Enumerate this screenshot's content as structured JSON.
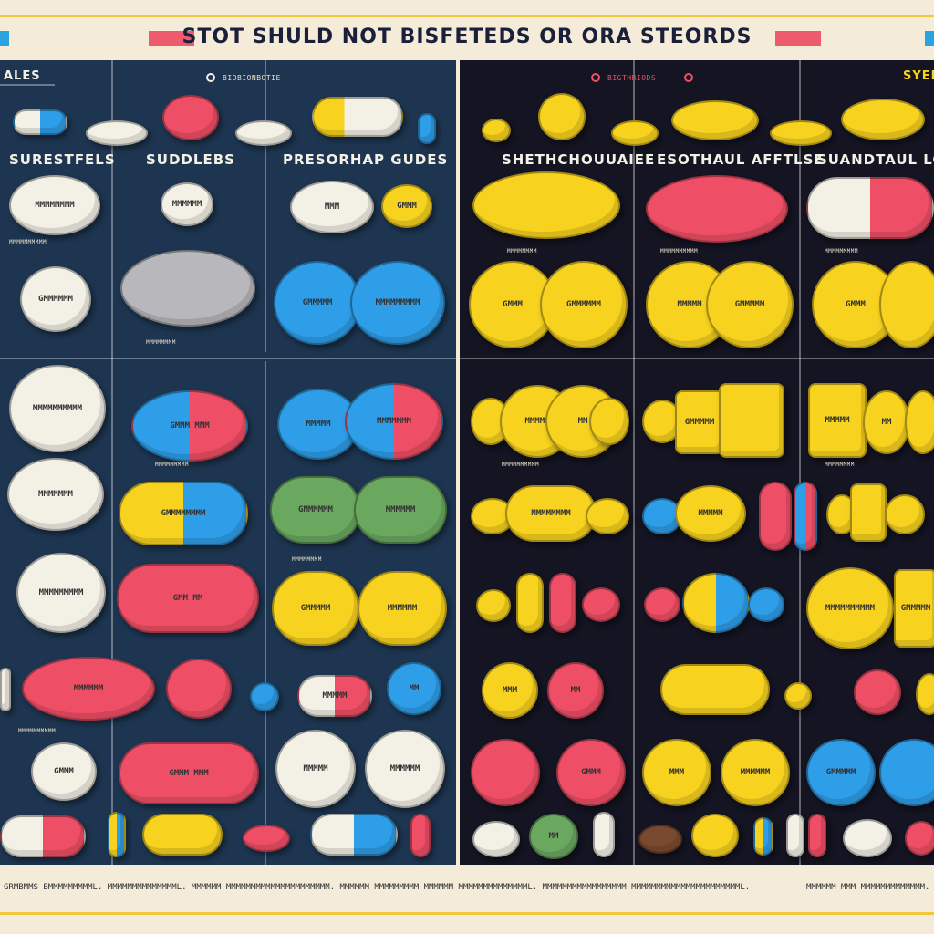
{
  "header": {
    "title": "STOT SHULD NOT BISFETEDS OR ORA STEORDS",
    "accent_red": "#ef4f66",
    "accent_blue": "#2aa4e0"
  },
  "left_panel": {
    "partial_header": "ALES",
    "tab_label": "BIOBIONBOTIE",
    "sections": {
      "col1": "SURESTFELS",
      "col2": "SUDDLEBS",
      "col3": "PRESORHAP GUDES"
    }
  },
  "right_panel": {
    "tab_label": "BIGTHRIODS",
    "partial_header": "SYEI",
    "sections": {
      "col1": "SHETHCHOUUAIEE",
      "col2": "ESOTHAUL AFFTLSE",
      "col3": "SUANDTAUL LOODC"
    }
  },
  "pill_labels": {
    "a": "MMMMMMM",
    "b": "GMMMMMM",
    "c": "MMM",
    "d": "GMMM MMM",
    "e": "MMMMMM",
    "f": "GMMM",
    "g": "GMM MM",
    "h": "MMMMMMMM",
    "i": "GMMMMM",
    "j": "MMMMM",
    "k": "MMMMMMMMM",
    "l": "GMMM MMM",
    "m": "MM",
    "n": "MMMMMMMMMM",
    "o": "GMMMMMMMM"
  },
  "footer": {
    "line1": "GRMBMMS BMMMMMMMMML. MMMMMMMMMMMMMML. MMMMMM MMMMMMMMMMMMMMMMMMMMM. MMMMMM MMMMMMMMM MMMMMM MMMMMMMMMMMMMML. MMMMMMMMMMMMMMMMM MMMMMMMMMMMMMMMMMMMMMML.",
    "line2": "MMMMMM MMM MMMMMMMMMMMMM. MMM"
  }
}
